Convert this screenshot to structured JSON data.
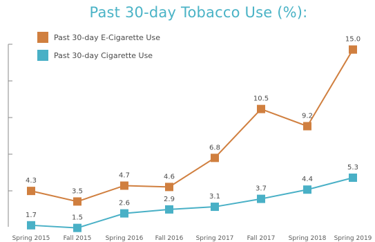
{
  "chart_data": {
    "type": "line",
    "title": "Past 30-day Tobacco Use (%):",
    "categories": [
      "Spring 2015",
      "Fall 2015",
      "Spring 2016",
      "Fall 2016",
      "Spring 2017",
      "Fall 2017",
      "Spring 2018",
      "Spring 2019"
    ],
    "series": [
      {
        "name": "Past 30-day E-Cigarette Use",
        "color": "#d07f3f",
        "values": [
          4.3,
          3.5,
          4.7,
          4.6,
          6.8,
          10.5,
          9.2,
          15.0
        ],
        "labels": [
          "4.3",
          "3.5",
          "4.7",
          "4.6",
          "6.8",
          "10.5",
          "9.2",
          "15.0"
        ]
      },
      {
        "name": "Past 30-day Cigarette Use",
        "color": "#49b0c6",
        "values": [
          1.7,
          1.5,
          2.6,
          2.9,
          3.1,
          3.7,
          4.4,
          5.3
        ],
        "labels": [
          "1.7",
          "1.5",
          "2.6",
          "2.9",
          "3.1",
          "3.7",
          "4.4",
          "5.3"
        ]
      }
    ],
    "ylim": [
      0,
      16
    ],
    "legend_position": "top-left",
    "grid": false
  }
}
